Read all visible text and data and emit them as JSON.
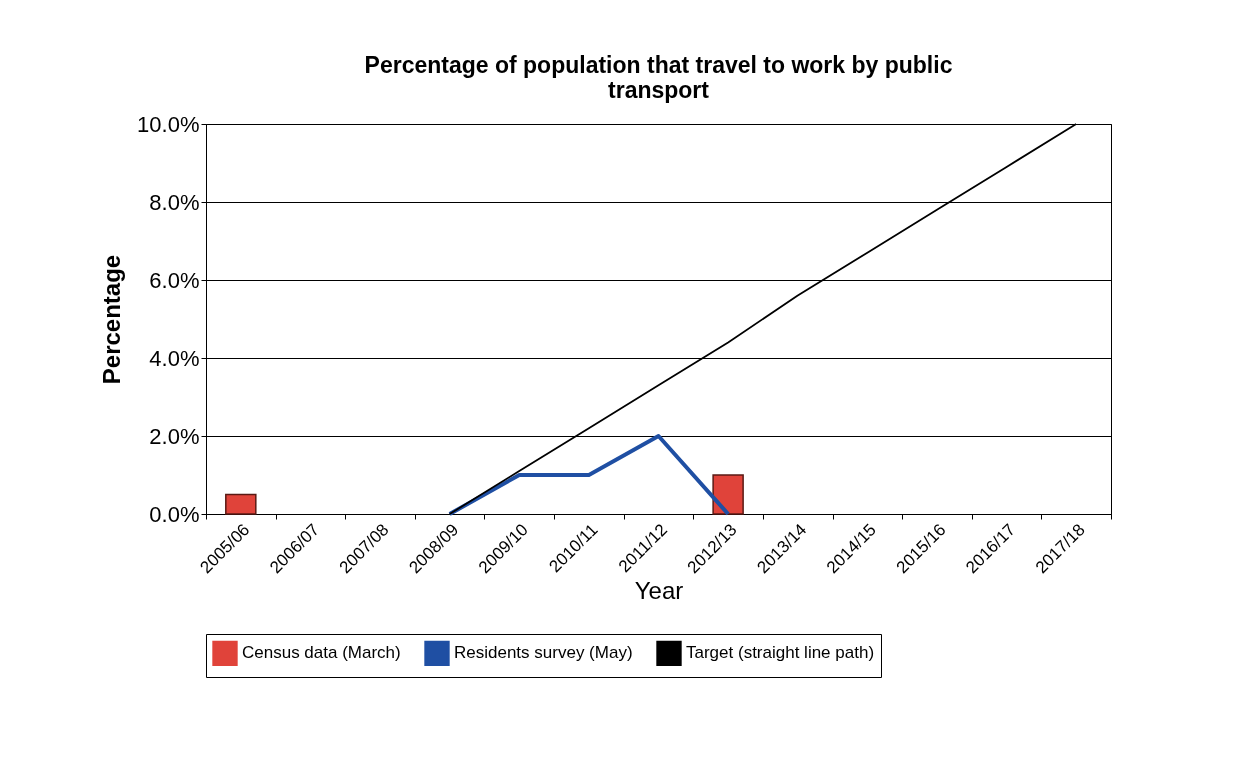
{
  "chart_data": {
    "type": "bar",
    "title": "Percentage of population that travel to work by public transport",
    "xlabel": "Year",
    "ylabel": "Percentage",
    "categories": [
      "2005/06",
      "2006/07",
      "2007/08",
      "2008/09",
      "2009/10",
      "2010/11",
      "2011/12",
      "2012/13",
      "2013/14",
      "2014/15",
      "2015/16",
      "2016/17",
      "2017/18"
    ],
    "series": [
      {
        "name": "Census data (March)",
        "color": "#e0433a",
        "values": [
          0.5,
          null,
          null,
          null,
          null,
          null,
          null,
          1.0,
          null,
          null,
          null,
          null,
          null
        ]
      },
      {
        "name": "Residents survey (May)",
        "type": "line",
        "color": "#1f4fa3",
        "values": [
          null,
          null,
          null,
          0,
          1.0,
          1.0,
          2.0,
          0,
          null,
          null,
          null,
          null,
          null
        ]
      },
      {
        "name": "Target (straight line path)",
        "type": "line",
        "color": "#000000",
        "values": [
          null,
          null,
          null,
          0,
          1.1,
          2.2,
          3.3,
          4.4,
          5.6,
          6.7,
          7.8,
          8.9,
          10.0
        ]
      }
    ],
    "ylim": [
      0,
      10
    ],
    "yticks": [
      {
        "value": 0,
        "label": "0.0%"
      },
      {
        "value": 2,
        "label": "2.0%"
      },
      {
        "value": 4,
        "label": "4.0%"
      },
      {
        "value": 6,
        "label": "6.0%"
      },
      {
        "value": 8,
        "label": "8.0%"
      },
      {
        "value": 10,
        "label": "10.0%"
      }
    ],
    "grid": "y",
    "legend": "bottom"
  }
}
